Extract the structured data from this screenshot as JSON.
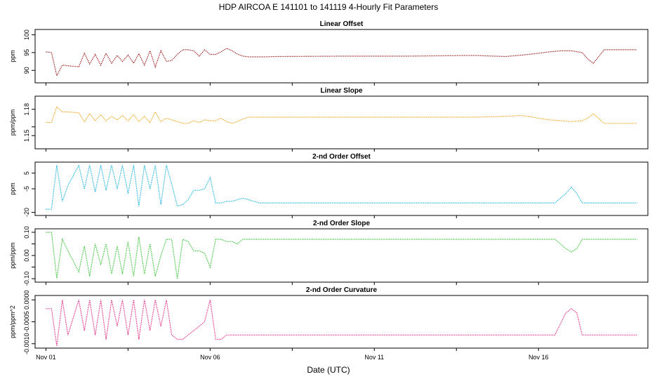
{
  "title": "HDP   AIRCOA E   141101 to 141119   4-Hourly Fit Parameters",
  "xlabel": "Date (UTC)",
  "x_ticks": [
    {
      "day": 1,
      "label": "Nov 01"
    },
    {
      "day": 6,
      "label": "Nov 06"
    },
    {
      "day": 11,
      "label": "Nov 11"
    },
    {
      "day": 16,
      "label": "Nov 16"
    }
  ],
  "x_minor_ticks": [
    3.5,
    8.5,
    13.5
  ],
  "xlim": [
    0.67,
    19.33
  ],
  "chart_data": [
    {
      "type": "line",
      "title": "Linear Offset",
      "ylabel": "ppm",
      "color": "#8b0000",
      "ylim": [
        86.5,
        101.5
      ],
      "y_ticks": [
        90,
        95,
        100
      ],
      "x": [
        1.0,
        1.17,
        1.33,
        1.5,
        1.67,
        2.0,
        2.17,
        2.33,
        2.5,
        2.67,
        2.83,
        3.0,
        3.17,
        3.33,
        3.5,
        3.67,
        3.83,
        4.0,
        4.17,
        4.33,
        4.5,
        4.67,
        4.83,
        5.0,
        5.17,
        5.33,
        5.5,
        5.67,
        5.83,
        6.0,
        6.17,
        6.33,
        6.5,
        6.67,
        6.83,
        7.0,
        7.17,
        7.67,
        8.0,
        10.0,
        12.0,
        14.0,
        15.0,
        15.5,
        16.0,
        16.33,
        16.67,
        17.0,
        17.33,
        17.5,
        17.67,
        18.0,
        19.0
      ],
      "y": [
        95.2,
        95.0,
        88.5,
        91.5,
        91.3,
        91.0,
        94.8,
        91.8,
        94.5,
        91.5,
        94.8,
        92.0,
        94.2,
        92.5,
        94.3,
        92.0,
        94.7,
        91.5,
        95.5,
        91.0,
        95.5,
        92.5,
        92.8,
        94.5,
        95.8,
        95.8,
        95.5,
        94.0,
        95.8,
        94.5,
        94.5,
        95.2,
        96.2,
        95.5,
        94.6,
        94.0,
        93.8,
        93.8,
        93.9,
        94.0,
        94.0,
        94.2,
        93.9,
        94.3,
        94.8,
        95.2,
        95.5,
        95.5,
        95.0,
        93.2,
        92.0,
        95.8,
        95.8
      ]
    },
    {
      "type": "line",
      "title": "Linear Slope",
      "ylabel": "ppm/ppm",
      "color": "#ee9900",
      "ylim": [
        1.135,
        1.195
      ],
      "y_ticks": [
        1.15,
        1.16,
        1.18
      ],
      "y_tick_labels": [
        "1.15",
        "",
        "1.18"
      ],
      "x": [
        1.0,
        1.17,
        1.33,
        1.5,
        1.67,
        2.0,
        2.17,
        2.33,
        2.5,
        2.67,
        2.83,
        3.0,
        3.17,
        3.33,
        3.5,
        3.67,
        3.83,
        4.0,
        4.17,
        4.33,
        4.5,
        4.67,
        4.83,
        5.0,
        5.17,
        5.33,
        5.5,
        5.67,
        5.83,
        6.0,
        6.17,
        6.33,
        6.5,
        6.67,
        6.83,
        7.0,
        7.17,
        7.5,
        8.0,
        10.0,
        12.0,
        14.0,
        15.0,
        15.5,
        16.0,
        16.33,
        16.67,
        17.0,
        17.33,
        17.5,
        17.67,
        18.0,
        19.0
      ],
      "y": [
        1.165,
        1.165,
        1.183,
        1.177,
        1.177,
        1.176,
        1.166,
        1.175,
        1.167,
        1.174,
        1.167,
        1.172,
        1.168,
        1.173,
        1.167,
        1.174,
        1.166,
        1.172,
        1.165,
        1.177,
        1.166,
        1.17,
        1.168,
        1.166,
        1.164,
        1.164,
        1.167,
        1.165,
        1.168,
        1.167,
        1.167,
        1.17,
        1.166,
        1.164,
        1.166,
        1.169,
        1.171,
        1.171,
        1.171,
        1.171,
        1.171,
        1.171,
        1.172,
        1.173,
        1.17,
        1.168,
        1.167,
        1.166,
        1.167,
        1.17,
        1.175,
        1.164,
        1.164
      ]
    },
    {
      "type": "line",
      "title": "2-nd Order Offset",
      "ylabel": "ppm",
      "color": "#00aadd",
      "ylim": [
        -22,
        12
      ],
      "y_ticks": [
        -20,
        -5,
        5
      ],
      "x": [
        1.0,
        1.17,
        1.33,
        1.5,
        1.67,
        2.0,
        2.17,
        2.33,
        2.5,
        2.67,
        2.83,
        3.0,
        3.17,
        3.33,
        3.5,
        3.67,
        3.83,
        4.0,
        4.17,
        4.33,
        4.5,
        4.67,
        4.83,
        5.0,
        5.17,
        5.33,
        5.5,
        5.67,
        5.83,
        6.0,
        6.17,
        6.33,
        6.5,
        6.67,
        6.83,
        7.0,
        7.17,
        7.5,
        8.0,
        10.0,
        12.0,
        14.0,
        15.0,
        16.0,
        16.5,
        16.83,
        17.0,
        17.17,
        17.33,
        17.5,
        17.67,
        18.0,
        19.0
      ],
      "y": [
        -18,
        -18,
        10,
        -13,
        -3,
        10,
        -5,
        10,
        -7,
        10,
        -6,
        10,
        -5,
        10,
        -8,
        10,
        -16,
        10,
        -5,
        10,
        -15,
        10,
        -2,
        -16,
        -15,
        -12,
        -6,
        -6,
        -5,
        2,
        -14,
        -14,
        -13,
        -13,
        -12,
        -11,
        -12,
        -14,
        -14,
        -14,
        -14,
        -14,
        -14,
        -14,
        -14,
        -8,
        -4,
        -8,
        -14,
        -14,
        -14,
        -14,
        -14
      ]
    },
    {
      "type": "line",
      "title": "2-nd Order Slope",
      "ylabel": "ppm/ppm",
      "color": "#22bb22",
      "ylim": [
        -0.115,
        0.115
      ],
      "y_ticks": [
        -0.1,
        -0.05,
        0.0,
        0.05,
        0.1
      ],
      "y_tick_labels": [
        "-0.10",
        "",
        "0.00",
        "",
        "0.10"
      ],
      "x": [
        1.0,
        1.17,
        1.33,
        1.5,
        1.67,
        2.0,
        2.17,
        2.33,
        2.5,
        2.67,
        2.83,
        3.0,
        3.17,
        3.33,
        3.5,
        3.67,
        3.83,
        4.0,
        4.17,
        4.33,
        4.5,
        4.67,
        4.83,
        5.0,
        5.17,
        5.33,
        5.5,
        5.67,
        5.83,
        6.0,
        6.17,
        6.33,
        6.5,
        6.67,
        6.83,
        7.0,
        7.17,
        7.5,
        8.0,
        10.0,
        12.0,
        14.0,
        15.0,
        16.0,
        16.5,
        16.83,
        17.0,
        17.17,
        17.33,
        17.5,
        17.67,
        18.0,
        19.0
      ],
      "y": [
        0.1,
        0.1,
        -0.1,
        0.07,
        0.02,
        -0.07,
        0.04,
        -0.09,
        0.05,
        -0.04,
        0.05,
        -0.08,
        0.04,
        -0.08,
        0.06,
        -0.09,
        0.08,
        -0.08,
        0.05,
        -0.09,
        0.0,
        0.07,
        0.07,
        -0.1,
        0.07,
        0.06,
        0.02,
        0.02,
        0.01,
        -0.05,
        0.07,
        0.07,
        0.06,
        0.06,
        0.05,
        0.07,
        0.07,
        0.07,
        0.07,
        0.07,
        0.07,
        0.07,
        0.07,
        0.07,
        0.07,
        0.03,
        0.015,
        0.03,
        0.07,
        0.07,
        0.07,
        0.07,
        0.07
      ]
    },
    {
      "type": "line",
      "title": "2-nd Order Curvature",
      "ylabel": "ppm/ppm^2",
      "color": "#dd1177",
      "ylim": [
        -0.0011,
        0.0001
      ],
      "y_ticks": [
        -0.001,
        -0.0005,
        0.0
      ],
      "y_tick_labels": [
        "-0.0010",
        "-0.0005",
        "0.0000"
      ],
      "x": [
        1.0,
        1.17,
        1.33,
        1.5,
        1.67,
        2.0,
        2.17,
        2.33,
        2.5,
        2.67,
        2.83,
        3.0,
        3.17,
        3.33,
        3.5,
        3.67,
        3.83,
        4.0,
        4.17,
        4.33,
        4.5,
        4.67,
        4.83,
        5.0,
        5.17,
        5.33,
        5.5,
        5.67,
        5.83,
        6.0,
        6.17,
        6.33,
        6.5,
        6.67,
        6.83,
        7.0,
        7.17,
        7.5,
        8.0,
        10.0,
        12.0,
        14.0,
        15.0,
        16.0,
        16.5,
        16.83,
        17.0,
        17.17,
        17.33,
        17.5,
        17.67,
        18.0,
        19.0
      ],
      "y": [
        -0.0002,
        -0.0002,
        -0.00105,
        0.0,
        -0.0008,
        0.0,
        -0.0007,
        0.0,
        -0.0008,
        0.0,
        -0.0009,
        0.0,
        -0.0006,
        0.0,
        -0.0008,
        0.0,
        -0.0009,
        0.0,
        -0.0007,
        0.0,
        -0.0006,
        0.0,
        -0.0008,
        -0.0009,
        -0.0009,
        -0.0008,
        -0.0007,
        -0.0006,
        -0.0005,
        0.0,
        -0.0009,
        -0.0009,
        -0.0008,
        -0.0008,
        -0.0008,
        -0.0008,
        -0.0008,
        -0.0008,
        -0.0008,
        -0.0008,
        -0.0008,
        -0.0008,
        -0.0008,
        -0.0008,
        -0.0008,
        -0.0003,
        -0.0002,
        -0.0003,
        -0.0008,
        -0.0008,
        -0.0008,
        -0.0008,
        -0.0008
      ]
    }
  ]
}
